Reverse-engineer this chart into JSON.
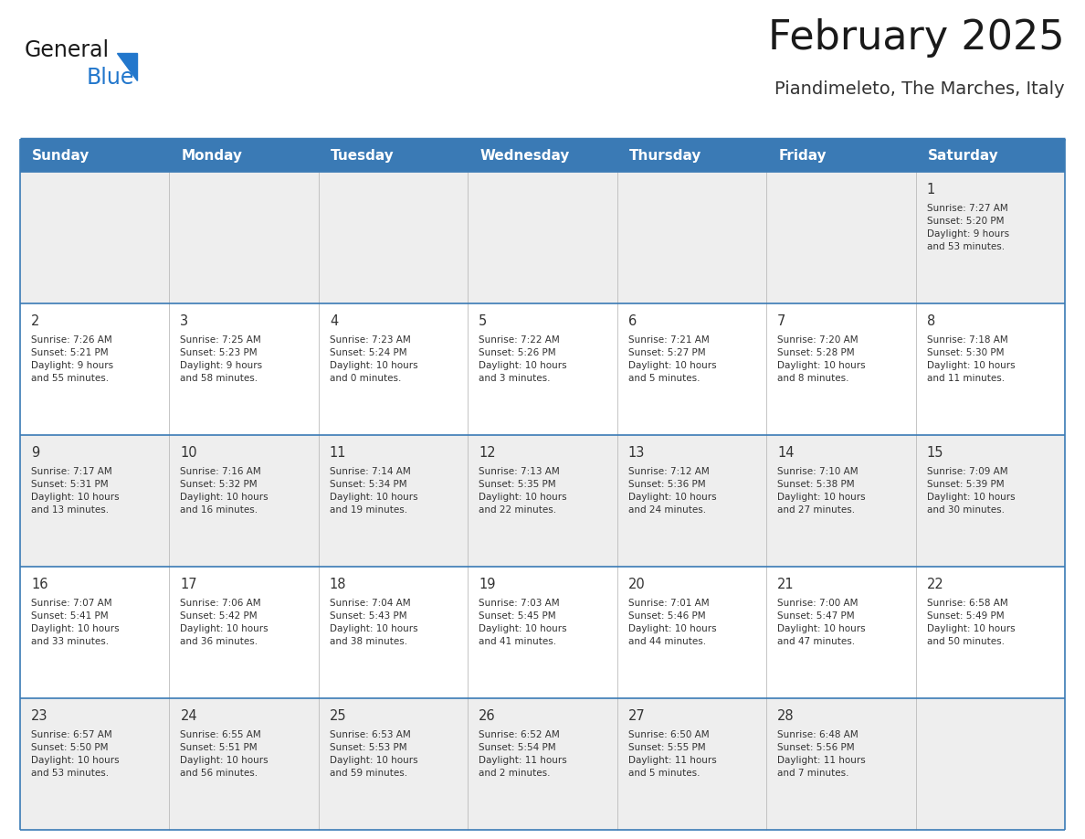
{
  "title": "February 2025",
  "subtitle": "Piandimeleto, The Marches, Italy",
  "days_of_week": [
    "Sunday",
    "Monday",
    "Tuesday",
    "Wednesday",
    "Thursday",
    "Friday",
    "Saturday"
  ],
  "header_bg": "#3a7ab5",
  "header_text": "#ffffff",
  "row1_bg": "#eeeeee",
  "row2_bg": "#ffffff",
  "cell_text": "#333333",
  "title_color": "#1a1a1a",
  "subtitle_color": "#333333",
  "divider_color": "#3a7ab5",
  "logo_general_color": "#1a1a1a",
  "logo_blue_color": "#2277cc",
  "logo_triangle_color": "#2277cc",
  "weeks": [
    [
      {
        "day": "",
        "info": ""
      },
      {
        "day": "",
        "info": ""
      },
      {
        "day": "",
        "info": ""
      },
      {
        "day": "",
        "info": ""
      },
      {
        "day": "",
        "info": ""
      },
      {
        "day": "",
        "info": ""
      },
      {
        "day": "1",
        "info": "Sunrise: 7:27 AM\nSunset: 5:20 PM\nDaylight: 9 hours\nand 53 minutes."
      }
    ],
    [
      {
        "day": "2",
        "info": "Sunrise: 7:26 AM\nSunset: 5:21 PM\nDaylight: 9 hours\nand 55 minutes."
      },
      {
        "day": "3",
        "info": "Sunrise: 7:25 AM\nSunset: 5:23 PM\nDaylight: 9 hours\nand 58 minutes."
      },
      {
        "day": "4",
        "info": "Sunrise: 7:23 AM\nSunset: 5:24 PM\nDaylight: 10 hours\nand 0 minutes."
      },
      {
        "day": "5",
        "info": "Sunrise: 7:22 AM\nSunset: 5:26 PM\nDaylight: 10 hours\nand 3 minutes."
      },
      {
        "day": "6",
        "info": "Sunrise: 7:21 AM\nSunset: 5:27 PM\nDaylight: 10 hours\nand 5 minutes."
      },
      {
        "day": "7",
        "info": "Sunrise: 7:20 AM\nSunset: 5:28 PM\nDaylight: 10 hours\nand 8 minutes."
      },
      {
        "day": "8",
        "info": "Sunrise: 7:18 AM\nSunset: 5:30 PM\nDaylight: 10 hours\nand 11 minutes."
      }
    ],
    [
      {
        "day": "9",
        "info": "Sunrise: 7:17 AM\nSunset: 5:31 PM\nDaylight: 10 hours\nand 13 minutes."
      },
      {
        "day": "10",
        "info": "Sunrise: 7:16 AM\nSunset: 5:32 PM\nDaylight: 10 hours\nand 16 minutes."
      },
      {
        "day": "11",
        "info": "Sunrise: 7:14 AM\nSunset: 5:34 PM\nDaylight: 10 hours\nand 19 minutes."
      },
      {
        "day": "12",
        "info": "Sunrise: 7:13 AM\nSunset: 5:35 PM\nDaylight: 10 hours\nand 22 minutes."
      },
      {
        "day": "13",
        "info": "Sunrise: 7:12 AM\nSunset: 5:36 PM\nDaylight: 10 hours\nand 24 minutes."
      },
      {
        "day": "14",
        "info": "Sunrise: 7:10 AM\nSunset: 5:38 PM\nDaylight: 10 hours\nand 27 minutes."
      },
      {
        "day": "15",
        "info": "Sunrise: 7:09 AM\nSunset: 5:39 PM\nDaylight: 10 hours\nand 30 minutes."
      }
    ],
    [
      {
        "day": "16",
        "info": "Sunrise: 7:07 AM\nSunset: 5:41 PM\nDaylight: 10 hours\nand 33 minutes."
      },
      {
        "day": "17",
        "info": "Sunrise: 7:06 AM\nSunset: 5:42 PM\nDaylight: 10 hours\nand 36 minutes."
      },
      {
        "day": "18",
        "info": "Sunrise: 7:04 AM\nSunset: 5:43 PM\nDaylight: 10 hours\nand 38 minutes."
      },
      {
        "day": "19",
        "info": "Sunrise: 7:03 AM\nSunset: 5:45 PM\nDaylight: 10 hours\nand 41 minutes."
      },
      {
        "day": "20",
        "info": "Sunrise: 7:01 AM\nSunset: 5:46 PM\nDaylight: 10 hours\nand 44 minutes."
      },
      {
        "day": "21",
        "info": "Sunrise: 7:00 AM\nSunset: 5:47 PM\nDaylight: 10 hours\nand 47 minutes."
      },
      {
        "day": "22",
        "info": "Sunrise: 6:58 AM\nSunset: 5:49 PM\nDaylight: 10 hours\nand 50 minutes."
      }
    ],
    [
      {
        "day": "23",
        "info": "Sunrise: 6:57 AM\nSunset: 5:50 PM\nDaylight: 10 hours\nand 53 minutes."
      },
      {
        "day": "24",
        "info": "Sunrise: 6:55 AM\nSunset: 5:51 PM\nDaylight: 10 hours\nand 56 minutes."
      },
      {
        "day": "25",
        "info": "Sunrise: 6:53 AM\nSunset: 5:53 PM\nDaylight: 10 hours\nand 59 minutes."
      },
      {
        "day": "26",
        "info": "Sunrise: 6:52 AM\nSunset: 5:54 PM\nDaylight: 11 hours\nand 2 minutes."
      },
      {
        "day": "27",
        "info": "Sunrise: 6:50 AM\nSunset: 5:55 PM\nDaylight: 11 hours\nand 5 minutes."
      },
      {
        "day": "28",
        "info": "Sunrise: 6:48 AM\nSunset: 5:56 PM\nDaylight: 11 hours\nand 7 minutes."
      },
      {
        "day": "",
        "info": ""
      }
    ]
  ]
}
